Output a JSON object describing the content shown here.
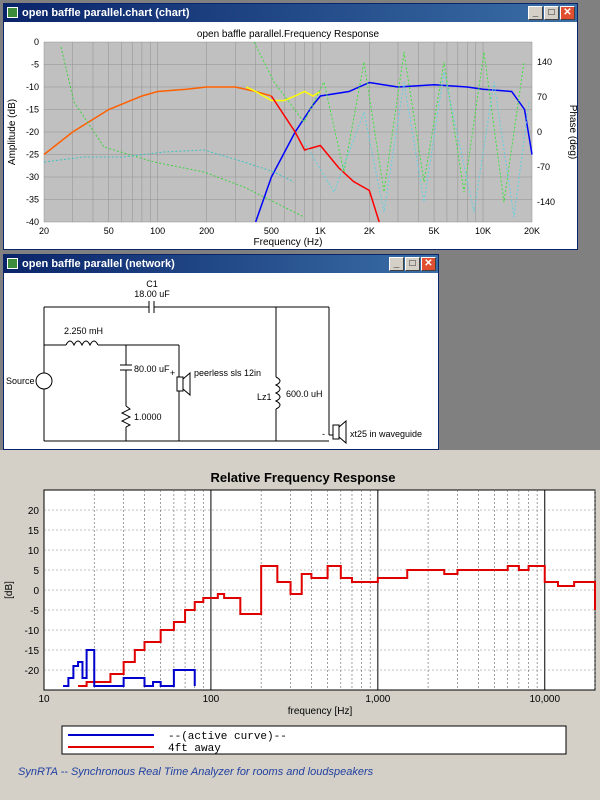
{
  "chart_window": {
    "title": "open baffle parallel.chart (chart)",
    "chart_title": "open baffle parallel.Frequency Response",
    "ylabel_left": "Amplitude (dB)",
    "ylabel_right": "Phase (deg)",
    "xlabel": "Frequency (Hz)",
    "y_ticks": [
      "0",
      "-5",
      "-10",
      "-15",
      "-20",
      "-25",
      "-30",
      "-35",
      "-40"
    ],
    "phase_ticks": [
      "140",
      "70",
      "0",
      "-70",
      "-140"
    ],
    "x_ticks": [
      "20",
      "50",
      "100",
      "200",
      "500",
      "1K",
      "2K",
      "5K",
      "10K",
      "20K"
    ]
  },
  "network_window": {
    "title": "open baffle parallel (network)",
    "labels": {
      "c1": "C1",
      "c1_value": "18.00 uF",
      "l_value": "2.250 mH",
      "c2_value": "80.00 uF",
      "r_value": "1.0000",
      "lz1": "Lz1",
      "lz1_value": "600.0 uH",
      "driver1": "peerless sls 12in",
      "driver2": "xt25 in waveguide",
      "source": "Source",
      "plus": "+",
      "minus": "-"
    }
  },
  "synrta": {
    "title": "Relative Frequency Response",
    "ylabel": "[dB]",
    "xlabel": "frequency [Hz]",
    "y_ticks": [
      "20",
      "15",
      "10",
      "5",
      "0",
      "-5",
      "-10",
      "-15",
      "-20"
    ],
    "x_ticks": [
      "10",
      "100",
      "1,000",
      "10,000"
    ],
    "legend": [
      {
        "label": "--(active curve)--",
        "color": "#0000cc"
      },
      {
        "label": "4ft away",
        "color": "#e00000"
      }
    ],
    "footer": "SynRTA -- Synchronous Real Time Analyzer for rooms and loudspeakers"
  },
  "chart_data": [
    {
      "type": "line",
      "title": "open baffle parallel.Frequency Response",
      "xlabel": "Frequency (Hz)",
      "ylabel": "Amplitude (dB)",
      "x_scale": "log",
      "xlim": [
        20,
        20000
      ],
      "ylim": [
        -40,
        0
      ],
      "grid": true,
      "series": [
        {
          "color": "#ff6000",
          "x": [
            20,
            30,
            50,
            80,
            100,
            150,
            200,
            300,
            400,
            500
          ],
          "y": [
            -25,
            -20,
            -15,
            -12,
            -11,
            -10.5,
            -10,
            -10,
            -11,
            -12
          ]
        },
        {
          "color": "#ffff00",
          "x": [
            350,
            400,
            500,
            600,
            700,
            800,
            900,
            1000
          ],
          "y": [
            -10,
            -11,
            -13,
            -13,
            -12,
            -11,
            -12,
            -11
          ]
        },
        {
          "color": "#0000ff",
          "x": [
            400,
            500,
            700,
            900,
            1000,
            1500,
            2000,
            3000,
            5000,
            8000,
            10000,
            15000,
            18000,
            20000
          ],
          "y": [
            -40,
            -30,
            -20,
            -14,
            -12,
            -11,
            -9,
            -10,
            -9.5,
            -10,
            -10.5,
            -11,
            -15,
            -25
          ]
        },
        {
          "color": "#ff0000",
          "x": [
            500,
            700,
            800,
            1000,
            1300,
            1600,
            2000,
            2300
          ],
          "y": [
            -12,
            -20,
            -24,
            -23,
            -28,
            -31,
            -33,
            -40
          ]
        }
      ]
    },
    {
      "type": "line",
      "title": "Relative Frequency Response",
      "xlabel": "frequency [Hz]",
      "ylabel": "[dB]",
      "x_scale": "log",
      "xlim": [
        10,
        20000
      ],
      "ylim": [
        -25,
        25
      ],
      "grid": true,
      "series": [
        {
          "name": "4ft away",
          "color": "#e00000",
          "x": [
            16,
            18,
            20,
            25,
            30,
            35,
            40,
            50,
            60,
            70,
            80,
            90,
            100,
            110,
            120,
            150,
            200,
            250,
            300,
            350,
            400,
            500,
            600,
            700,
            800,
            1000,
            1200,
            1500,
            2000,
            2500,
            3000,
            4000,
            5000,
            6000,
            7000,
            8000,
            10000,
            12000,
            15000,
            18000,
            20000
          ],
          "y": [
            -24,
            -23,
            -23,
            -21,
            -18,
            -15,
            -13,
            -10,
            -8,
            -5,
            -3,
            -2,
            -2,
            -1,
            -2,
            -6,
            6,
            2,
            -1,
            4,
            3,
            6,
            3,
            2,
            2,
            3,
            3,
            5,
            5,
            4,
            5,
            5,
            5,
            6,
            5,
            6,
            2,
            1,
            2,
            2,
            -5
          ]
        },
        {
          "name": "--(active curve)--",
          "color": "#0000cc",
          "x": [
            13,
            14,
            15,
            16,
            17,
            18,
            20,
            25,
            30,
            40,
            45,
            50,
            60,
            70,
            80
          ],
          "y": [
            -24,
            -22,
            -19,
            -18,
            -22,
            -15,
            -24,
            -24,
            -22,
            -24,
            -23,
            -24,
            -20,
            -20,
            -24
          ]
        }
      ]
    }
  ]
}
